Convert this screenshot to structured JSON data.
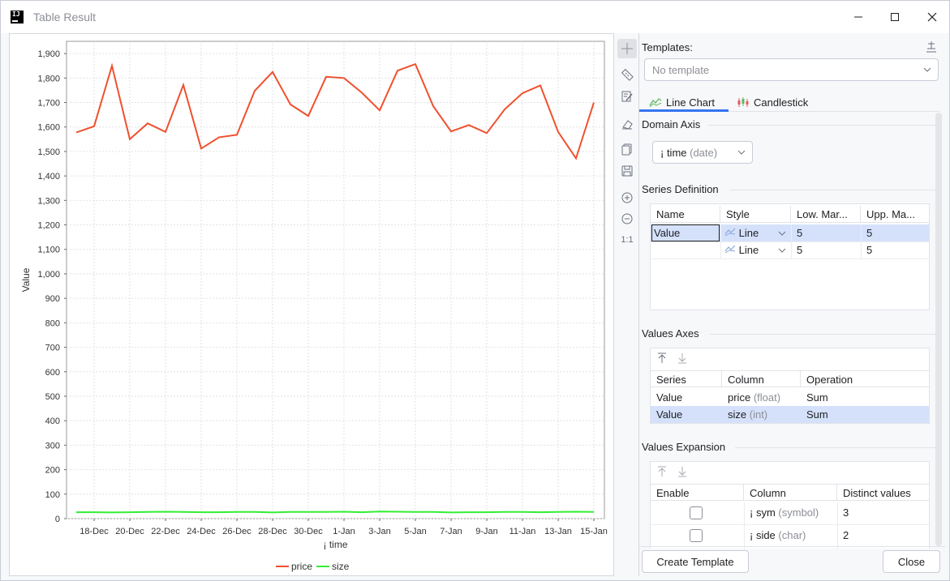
{
  "window": {
    "title": "Table Result",
    "app_icon_text": "IJ"
  },
  "chart_data": {
    "type": "line",
    "xlabel": "¡ time",
    "ylabel": "Value",
    "ylim": [
      0,
      1950
    ],
    "yticks": [
      0,
      100,
      200,
      300,
      400,
      500,
      600,
      700,
      800,
      900,
      1000,
      1100,
      1200,
      1300,
      1400,
      1500,
      1600,
      1700,
      1800,
      1900
    ],
    "ytick_labels": [
      "0",
      "100",
      "200",
      "300",
      "400",
      "500",
      "600",
      "700",
      "800",
      "900",
      "1,000",
      "1,100",
      "1,200",
      "1,300",
      "1,400",
      "1,500",
      "1,600",
      "1,700",
      "1,800",
      "1,900"
    ],
    "x_dates": [
      "17-Dec",
      "18-Dec",
      "19-Dec",
      "20-Dec",
      "21-Dec",
      "22-Dec",
      "23-Dec",
      "24-Dec",
      "25-Dec",
      "26-Dec",
      "27-Dec",
      "28-Dec",
      "29-Dec",
      "30-Dec",
      "31-Dec",
      "1-Jan",
      "2-Jan",
      "3-Jan",
      "4-Jan",
      "5-Jan",
      "6-Jan",
      "7-Jan",
      "8-Jan",
      "9-Jan",
      "10-Jan",
      "11-Jan",
      "12-Jan",
      "13-Jan",
      "14-Jan",
      "15-Jan"
    ],
    "xtick_labels": [
      "18-Dec",
      "20-Dec",
      "22-Dec",
      "24-Dec",
      "26-Dec",
      "28-Dec",
      "30-Dec",
      "1-Jan",
      "3-Jan",
      "5-Jan",
      "7-Jan",
      "9-Jan",
      "11-Jan",
      "13-Jan",
      "15-Jan"
    ],
    "series": [
      {
        "name": "price",
        "color": "#f0502d",
        "values": [
          1578,
          1603,
          1850,
          1550,
          1615,
          1580,
          1772,
          1512,
          1558,
          1568,
          1748,
          1825,
          1692,
          1645,
          1805,
          1800,
          1740,
          1668,
          1830,
          1857,
          1685,
          1582,
          1608,
          1575,
          1672,
          1738,
          1770,
          1580,
          1472,
          1700
        ]
      },
      {
        "name": "size",
        "color": "#33ee33",
        "values": [
          26,
          26,
          25,
          26,
          27,
          28,
          27,
          26,
          26,
          27,
          27,
          25,
          27,
          27,
          27,
          28,
          26,
          29,
          28,
          27,
          27,
          25,
          26,
          26,
          27,
          27,
          26,
          27,
          28,
          27
        ]
      }
    ],
    "grid": true,
    "legend_position": "bottom"
  },
  "toolbar": {
    "icons": [
      "crosshair-icon",
      "ruler-icon",
      "edit-icon",
      "clear-icon",
      "copy-icon",
      "save-icon",
      "zoom-in-icon",
      "zoom-out-icon",
      "reset-zoom-icon"
    ],
    "reset_zoom_label": "1:1"
  },
  "settings": {
    "templates_label": "Templates:",
    "template_value": "No template",
    "tabs": [
      {
        "label": "Line Chart",
        "active": true
      },
      {
        "label": "Candlestick",
        "active": false
      }
    ],
    "domain_axis": {
      "label": "Domain Axis",
      "column": "¡ time",
      "type": "(date)"
    },
    "series_definition": {
      "label": "Series Definition",
      "headers": [
        "Name",
        "Style",
        "Low. Mar...",
        "Upp. Ma..."
      ],
      "rows": [
        {
          "name": "Value",
          "style": "Line",
          "low": "5",
          "upp": "5"
        },
        {
          "name": "",
          "style": "Line",
          "low": "5",
          "upp": "5"
        }
      ]
    },
    "values_axes": {
      "label": "Values Axes",
      "headers": [
        "Series",
        "Column",
        "Operation"
      ],
      "rows": [
        {
          "series": "Value",
          "column": "price",
          "type": "(float)",
          "operation": "Sum"
        },
        {
          "series": "Value",
          "column": "size",
          "type": "(int)",
          "operation": "Sum"
        }
      ]
    },
    "values_expansion": {
      "label": "Values Expansion",
      "headers": [
        "Enable",
        "Column",
        "Distinct values"
      ],
      "rows": [
        {
          "column": "¡ sym",
          "type": "(symbol)",
          "distinct": "3"
        },
        {
          "column": "¡ side",
          "type": "(char)",
          "distinct": "2"
        }
      ]
    },
    "create_template_label": "Create Template",
    "close_label": "Close"
  }
}
